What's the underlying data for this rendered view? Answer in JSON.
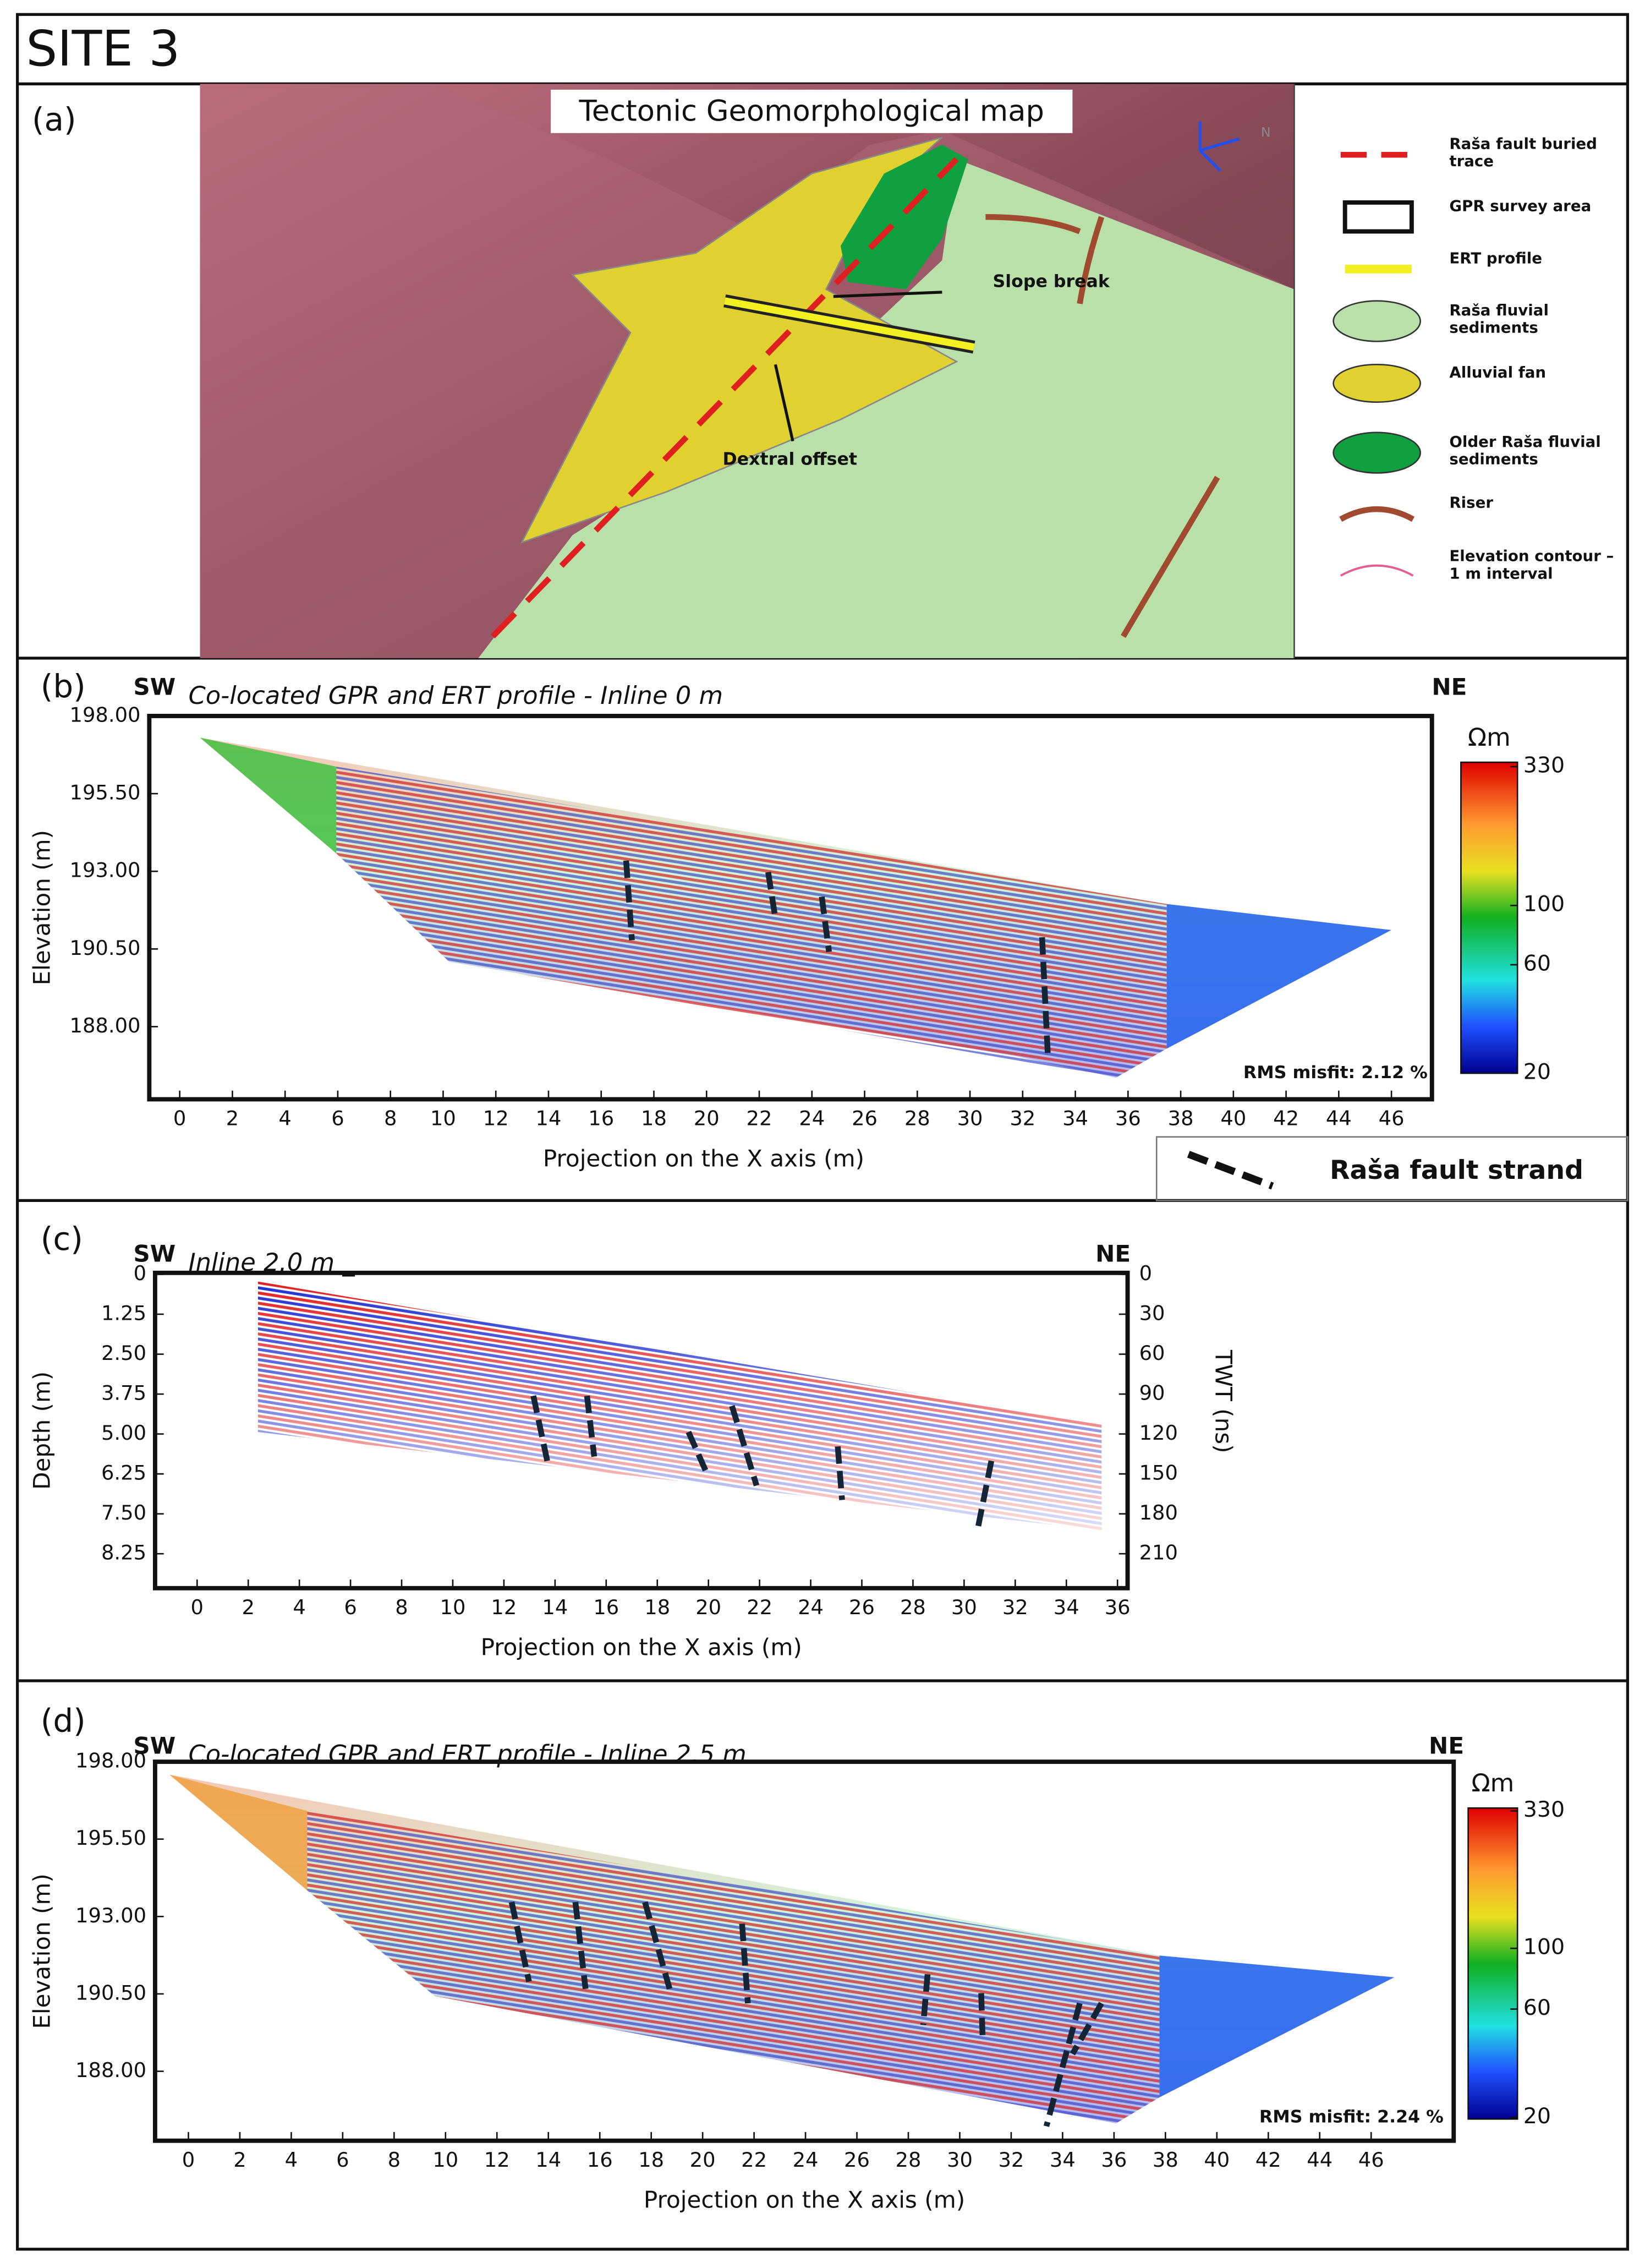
{
  "title": "SITE 3",
  "panel_a": {
    "label": "(a)",
    "title": "Tectonic Geomorphological map",
    "map_labels": [
      "Slope break",
      "Dextral offset"
    ],
    "compass": "N",
    "legend": [
      "Raša fault buried trace",
      "GPR survey area",
      "ERT profile",
      "Raša fluvial sediments",
      "Alluvial fan",
      "Older Raša fluvial sediments",
      "Riser",
      "Elevation contour – 1 m interval"
    ]
  },
  "panel_b": {
    "label": "(b)",
    "sw": "SW",
    "ne": "NE",
    "title": "Co-located GPR and ERT profile - Inline 0 m",
    "y_label": "Elevation (m)",
    "y_ticks": [
      "198.00",
      "195.50",
      "193.00",
      "190.50",
      "188.00"
    ],
    "x_label": "Projection on the X axis (m)",
    "x_ticks": [
      "0",
      "2",
      "4",
      "6",
      "8",
      "10",
      "12",
      "14",
      "16",
      "18",
      "20",
      "22",
      "24",
      "26",
      "28",
      "30",
      "32",
      "34",
      "36",
      "38",
      "40",
      "42",
      "44",
      "46"
    ],
    "colorbar_title": "Ωm",
    "colorbar_ticks": [
      "330",
      "100",
      "60",
      "20"
    ],
    "rms": "RMS misfit: 2.12 %",
    "fault_legend": "Raša fault strand"
  },
  "panel_c": {
    "label": "(c)",
    "sw": "SW",
    "ne": "NE",
    "title": "Inline 2.0 m _",
    "y_label": "Depth (m)",
    "y_ticks": [
      "0",
      "1.25",
      "2.50",
      "3.75",
      "5.00",
      "6.25",
      "7.50",
      "8.25"
    ],
    "y2_label": "TWT (ns)",
    "y2_ticks": [
      "0",
      "30",
      "60",
      "90",
      "120",
      "150",
      "180",
      "210"
    ],
    "x_label": "Projection on the X axis (m)",
    "x_ticks": [
      "0",
      "2",
      "4",
      "6",
      "8",
      "10",
      "12",
      "14",
      "16",
      "18",
      "20",
      "22",
      "24",
      "26",
      "28",
      "30",
      "32",
      "34",
      "36"
    ]
  },
  "panel_d": {
    "label": "(d)",
    "sw": "SW",
    "ne": "NE",
    "title": "Co-located GPR and ERT profile - Inline 2.5 m",
    "y_label": "Elevation (m)",
    "y_ticks": [
      "198.00",
      "195.50",
      "193.00",
      "190.50",
      "188.00"
    ],
    "x_label": "Projection on the X axis (m)",
    "x_ticks": [
      "0",
      "2",
      "4",
      "6",
      "8",
      "10",
      "12",
      "14",
      "16",
      "18",
      "20",
      "22",
      "24",
      "26",
      "28",
      "30",
      "32",
      "34",
      "36",
      "38",
      "40",
      "42",
      "44",
      "46"
    ],
    "colorbar_title": "Ωm",
    "colorbar_ticks": [
      "330",
      "100",
      "60",
      "20"
    ],
    "rms": "RMS misfit: 2.24 %"
  }
}
